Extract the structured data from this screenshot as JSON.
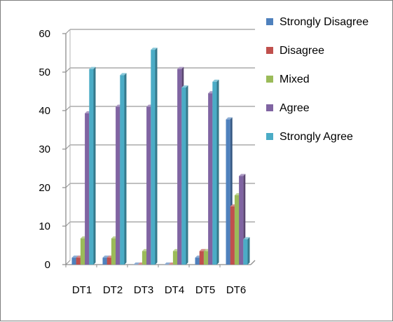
{
  "chart_data": {
    "type": "bar",
    "style": "3d-clustered-column",
    "categories": [
      "DT1",
      "DT2",
      "DT3",
      "DT4",
      "DT5",
      "DT6"
    ],
    "series": [
      {
        "name": "Strongly Disagree",
        "color": "#4f81bd",
        "values": [
          1.8,
          1.8,
          0,
          0,
          1.8,
          37.7
        ]
      },
      {
        "name": "Disagree",
        "color": "#c0504d",
        "values": [
          1.8,
          1.8,
          0,
          0,
          3.5,
          15.1
        ]
      },
      {
        "name": "Mixed",
        "color": "#9bbb59",
        "values": [
          6.8,
          6.8,
          3.5,
          3.5,
          3.5,
          18.0
        ]
      },
      {
        "name": "Agree",
        "color": "#8064a2",
        "values": [
          39.3,
          41.0,
          41.0,
          50.8,
          44.5,
          23.0
        ]
      },
      {
        "name": "Strongly Agree",
        "color": "#4bacc6",
        "values": [
          50.8,
          49.2,
          55.8,
          46.0,
          47.5,
          6.6
        ]
      }
    ],
    "y_ticks": [
      "0",
      "10",
      "20",
      "30",
      "40",
      "50",
      "60"
    ],
    "ylim": [
      0,
      60
    ],
    "grid": true,
    "legend_position": "right",
    "title": "",
    "xlabel": "",
    "ylabel": ""
  }
}
